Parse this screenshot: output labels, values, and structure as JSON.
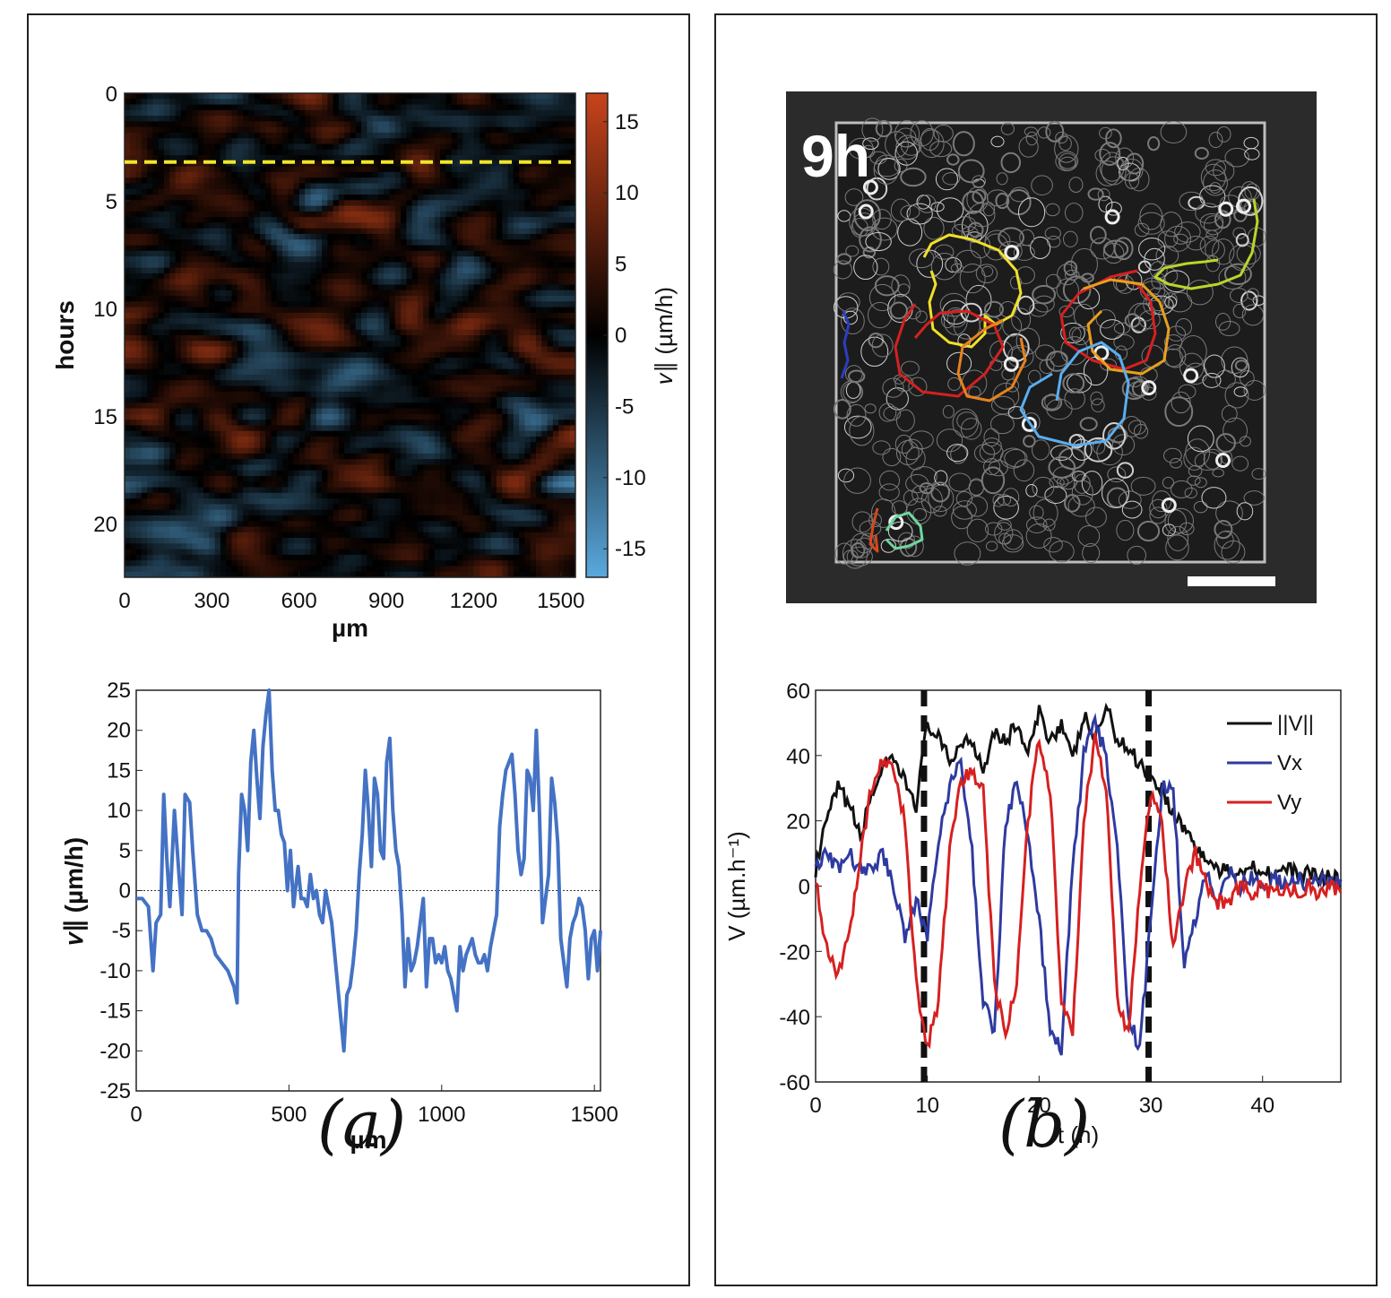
{
  "panel_a": {
    "label": "(a)"
  },
  "panel_b": {
    "label": "(b)"
  },
  "chart_data": [
    {
      "type": "heatmap",
      "name": "kymograph",
      "xlabel": "µm",
      "ylabel": "hours",
      "colorbar_label": "𝑣∥ (µm/h)",
      "x_ticks": [
        "0",
        "300",
        "600",
        "900",
        "1200",
        "1500"
      ],
      "y_ticks": [
        "0",
        "5",
        "10",
        "15",
        "20"
      ],
      "colorbar_ticks": [
        "15",
        "10",
        "5",
        "0",
        "-5",
        "-10",
        "-15"
      ],
      "xlim": [
        0,
        1550
      ],
      "ylim": [
        0,
        22.5
      ],
      "clim": [
        -17,
        17
      ],
      "highlight_time_hours": 3.2,
      "highlight_color": "#f2e52a",
      "positive_color": "#c8441b",
      "negative_color": "#5aa9de"
    },
    {
      "type": "line",
      "name": "velocity-profile",
      "xlabel": "µm",
      "ylabel": "𝑣∥ (µm/h)",
      "x_ticks": [
        "0",
        "500",
        "1000",
        "1500"
      ],
      "y_ticks": [
        "25",
        "20",
        "15",
        "10",
        "5",
        "0",
        "-5",
        "-10",
        "-15",
        "-20",
        "-25"
      ],
      "xlim": [
        0,
        1520
      ],
      "ylim": [
        -25,
        25
      ],
      "color": "#4472c4",
      "x": [
        0,
        20,
        40,
        55,
        65,
        80,
        90,
        100,
        110,
        125,
        140,
        150,
        160,
        175,
        185,
        200,
        215,
        230,
        245,
        260,
        280,
        300,
        320,
        330,
        335,
        345,
        355,
        365,
        375,
        385,
        395,
        405,
        415,
        425,
        435,
        445,
        455,
        465,
        475,
        485,
        495,
        505,
        515,
        530,
        540,
        550,
        560,
        570,
        580,
        590,
        600,
        610,
        620,
        630,
        640,
        650,
        660,
        670,
        680,
        690,
        700,
        710,
        720,
        730,
        740,
        750,
        760,
        770,
        780,
        790,
        800,
        810,
        820,
        830,
        840,
        850,
        860,
        870,
        880,
        890,
        900,
        910,
        920,
        930,
        940,
        950,
        960,
        970,
        980,
        990,
        1000,
        1010,
        1020,
        1030,
        1040,
        1050,
        1060,
        1070,
        1080,
        1090,
        1100,
        1110,
        1120,
        1130,
        1140,
        1150,
        1160,
        1170,
        1180,
        1190,
        1200,
        1210,
        1220,
        1230,
        1240,
        1250,
        1260,
        1270,
        1280,
        1290,
        1300,
        1310,
        1320,
        1330,
        1340,
        1350,
        1360,
        1370,
        1380,
        1390,
        1400,
        1410,
        1420,
        1430,
        1440,
        1450,
        1460,
        1470,
        1480,
        1490,
        1500,
        1510,
        1520
      ],
      "y": [
        -1,
        -1,
        -2,
        -10,
        -4,
        -3,
        12,
        4,
        -2,
        10,
        2,
        -3,
        12,
        11,
        5,
        -3,
        -5,
        -5,
        -6,
        -8,
        -9,
        -10,
        -12,
        -14,
        2,
        12,
        10,
        5,
        16,
        20,
        14,
        9,
        18,
        22,
        25,
        15,
        10,
        10,
        7,
        6,
        0,
        5,
        -2,
        3,
        -1,
        -1,
        -2,
        2,
        -1,
        0,
        -3,
        -4,
        0,
        -2,
        -4,
        -8,
        -12,
        -16,
        -20,
        -13,
        -12,
        -9,
        -5,
        2,
        7,
        15,
        10,
        3,
        14,
        12,
        5,
        4,
        16,
        19,
        10,
        5,
        3,
        -3,
        -12,
        -6,
        -10,
        -9,
        -7,
        -4,
        -1,
        -12,
        -6,
        -6,
        -9,
        -8,
        -9,
        -7,
        -10,
        -11,
        -13,
        -15,
        -7,
        -10,
        -8,
        -7,
        -6,
        -8,
        -9,
        -9,
        -8,
        -10,
        -7,
        -5,
        -3,
        8,
        12,
        15,
        16,
        17,
        12,
        5,
        2,
        4,
        15,
        14,
        10,
        20,
        10,
        -4,
        -1,
        2,
        14,
        11,
        6,
        -6,
        -9,
        -12,
        -6,
        -4,
        -3,
        -1,
        -2,
        -5,
        -11,
        -6,
        -5,
        -10,
        -5
      ],
      "zero_line": true
    },
    {
      "type": "line",
      "name": "velocity-time",
      "xlabel": "t (h)",
      "ylabel": "V (µm.h⁻¹)",
      "x_ticks": [
        "0",
        "10",
        "20",
        "30",
        "40"
      ],
      "y_ticks": [
        "60",
        "40",
        "20",
        "0",
        "-20",
        "-40",
        "-60"
      ],
      "xlim": [
        0,
        47
      ],
      "ylim": [
        -60,
        60
      ],
      "dashed_verticals": [
        9.7,
        29.8
      ],
      "series": [
        {
          "name": "||V||",
          "color": "#111111",
          "x": [
            0,
            1,
            2,
            3,
            4,
            5,
            6,
            7,
            8,
            9,
            10,
            11,
            12,
            13,
            14,
            15,
            16,
            17,
            18,
            19,
            20,
            21,
            22,
            23,
            24,
            25,
            26,
            27,
            28,
            29,
            30,
            31,
            32,
            33,
            34,
            35,
            36,
            37,
            38,
            39,
            40,
            41,
            42,
            43,
            44,
            45,
            46,
            47
          ],
          "y": [
            5,
            20,
            30,
            25,
            15,
            28,
            36,
            38,
            32,
            25,
            50,
            45,
            38,
            44,
            45,
            36,
            48,
            44,
            50,
            40,
            53,
            45,
            50,
            38,
            52,
            45,
            55,
            45,
            42,
            38,
            33,
            30,
            22,
            18,
            12,
            8,
            5,
            4,
            5,
            6,
            5,
            4,
            5,
            4,
            4,
            3,
            3,
            2
          ]
        },
        {
          "name": "Vx",
          "color": "#2e3aa0",
          "x": [
            0,
            1,
            2,
            3,
            4,
            5,
            6,
            7,
            8,
            9,
            10,
            11,
            12,
            13,
            14,
            15,
            16,
            17,
            18,
            19,
            20,
            21,
            22,
            23,
            24,
            25,
            26,
            27,
            28,
            29,
            30,
            31,
            32,
            33,
            34,
            35,
            36,
            37,
            38,
            39,
            40,
            41,
            42,
            43,
            44,
            45,
            46,
            47
          ],
          "y": [
            5,
            10,
            5,
            10,
            5,
            5,
            10,
            0,
            -15,
            -5,
            -15,
            15,
            30,
            38,
            10,
            -35,
            -45,
            20,
            32,
            15,
            -10,
            -45,
            -50,
            5,
            40,
            50,
            40,
            10,
            -40,
            -50,
            -10,
            30,
            30,
            -25,
            -10,
            5,
            -5,
            5,
            0,
            3,
            0,
            2,
            0,
            3,
            0,
            2,
            0,
            2
          ]
        },
        {
          "name": "Vy",
          "color": "#d62020",
          "x": [
            0,
            1,
            2,
            3,
            4,
            5,
            6,
            7,
            8,
            9,
            10,
            11,
            12,
            13,
            14,
            15,
            16,
            17,
            18,
            19,
            20,
            21,
            22,
            23,
            24,
            25,
            26,
            27,
            28,
            29,
            30,
            31,
            32,
            33,
            34,
            35,
            36,
            37,
            38,
            39,
            40,
            41,
            42,
            43,
            44,
            45,
            46,
            47
          ],
          "y": [
            2,
            -20,
            -28,
            -15,
            10,
            30,
            38,
            35,
            20,
            -30,
            -50,
            -35,
            10,
            32,
            35,
            30,
            -30,
            -45,
            -30,
            20,
            45,
            30,
            -35,
            -45,
            20,
            45,
            30,
            -35,
            -45,
            0,
            28,
            20,
            -20,
            0,
            10,
            0,
            -5,
            -5,
            0,
            -3,
            0,
            -3,
            0,
            -2,
            0,
            -2,
            0,
            -2
          ]
        }
      ]
    }
  ],
  "micrograph": {
    "time_label": "9h",
    "description_tracks": [
      "yellow",
      "red",
      "orange",
      "sky-blue",
      "lime",
      "blue",
      "orange-red",
      "mint"
    ]
  }
}
